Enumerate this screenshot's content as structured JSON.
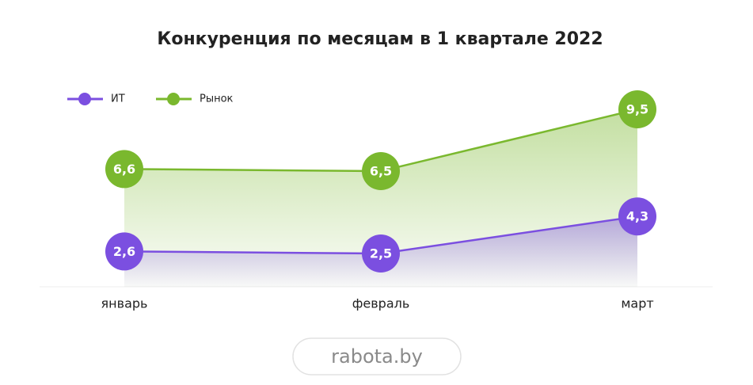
{
  "chart_data": {
    "type": "line",
    "title": "Конкуренция по месяцам в 1 квартале 2022",
    "categories": [
      "январь",
      "февраль",
      "март"
    ],
    "series": [
      {
        "name": "ИТ",
        "color": "#7b4fe0",
        "values": [
          2.6,
          2.5,
          4.3
        ],
        "value_labels": [
          "2,6",
          "2,5",
          "4,3"
        ]
      },
      {
        "name": "Рынок",
        "color": "#7ab82e",
        "values": [
          6.6,
          6.5,
          9.5
        ],
        "value_labels": [
          "6,6",
          "6,5",
          "9,5"
        ]
      }
    ],
    "legend": "top-left",
    "watermark": "rabota.by"
  }
}
